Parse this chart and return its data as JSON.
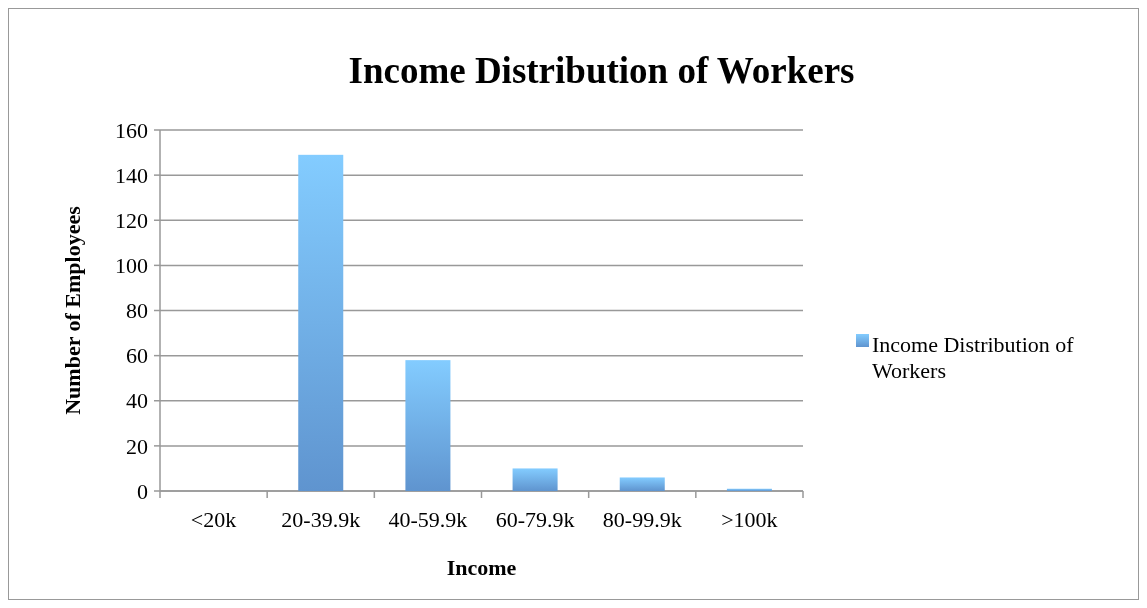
{
  "chart_data": {
    "type": "bar",
    "title": "Income Distribution of Workers",
    "xlabel": "Income",
    "ylabel": "Number of Employees",
    "categories": [
      "<20k",
      "20-39.9k",
      "40-59.9k",
      "60-79.9k",
      "80-99.9k",
      ">100k"
    ],
    "series": [
      {
        "name": "Income Distribution of Workers",
        "color": "#6aa5e6",
        "values": [
          0,
          149,
          58,
          10,
          6,
          1
        ]
      }
    ],
    "ylim": [
      0,
      160
    ],
    "yticks": [
      0,
      20,
      40,
      60,
      80,
      100,
      120,
      140,
      160
    ],
    "grid": "y",
    "legend": "right"
  }
}
